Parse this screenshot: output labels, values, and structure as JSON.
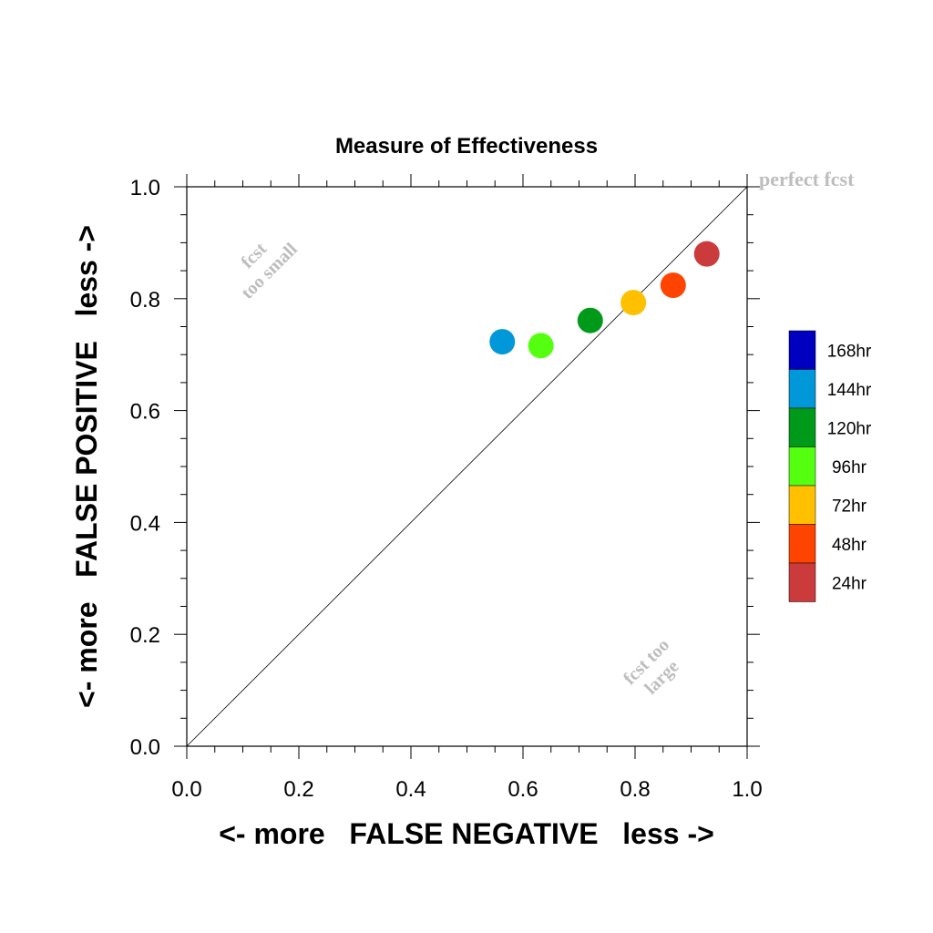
{
  "chart_data": {
    "type": "scatter",
    "title": "Measure of Effectiveness",
    "xlabel": "<- more   FALSE NEGATIVE   less ->",
    "ylabel": "<- more   FALSE POSITIVE   less ->",
    "xlim": [
      0.0,
      1.0
    ],
    "ylim": [
      0.0,
      1.0
    ],
    "x_ticks": [
      "0.0",
      "0.2",
      "0.4",
      "0.6",
      "0.8",
      "1.0"
    ],
    "y_ticks": [
      "0.0",
      "0.2",
      "0.4",
      "0.6",
      "0.8",
      "1.0"
    ],
    "grid": false,
    "diagonal_line": true,
    "annotations": {
      "perfect": "perfect fcst",
      "small_line1": "fcst",
      "small_line2": "too small",
      "large_line1": "fcst too",
      "large_line2": "large"
    },
    "series": [
      {
        "name": "24hr",
        "color": "#cc3b3b",
        "x": 0.928,
        "y": 0.88
      },
      {
        "name": "48hr",
        "color": "#ff4400",
        "x": 0.868,
        "y": 0.824
      },
      {
        "name": "72hr",
        "color": "#ffc000",
        "x": 0.797,
        "y": 0.793
      },
      {
        "name": "96hr",
        "color": "#55ff10",
        "x": 0.632,
        "y": 0.716
      },
      {
        "name": "120hr",
        "color": "#009a1a",
        "x": 0.72,
        "y": 0.761
      },
      {
        "name": "144hr",
        "color": "#0098d8",
        "x": 0.563,
        "y": 0.723
      }
    ],
    "legend": {
      "placement": "right",
      "entries": [
        {
          "label": "168hr",
          "color": "#0000c0"
        },
        {
          "label": "144hr",
          "color": "#0098d8"
        },
        {
          "label": "120hr",
          "color": "#009a1a"
        },
        {
          "label": "96hr",
          "color": "#55ff10"
        },
        {
          "label": "72hr",
          "color": "#ffc000"
        },
        {
          "label": "48hr",
          "color": "#ff4400"
        },
        {
          "label": "24hr",
          "color": "#cc3b3b"
        }
      ]
    }
  }
}
